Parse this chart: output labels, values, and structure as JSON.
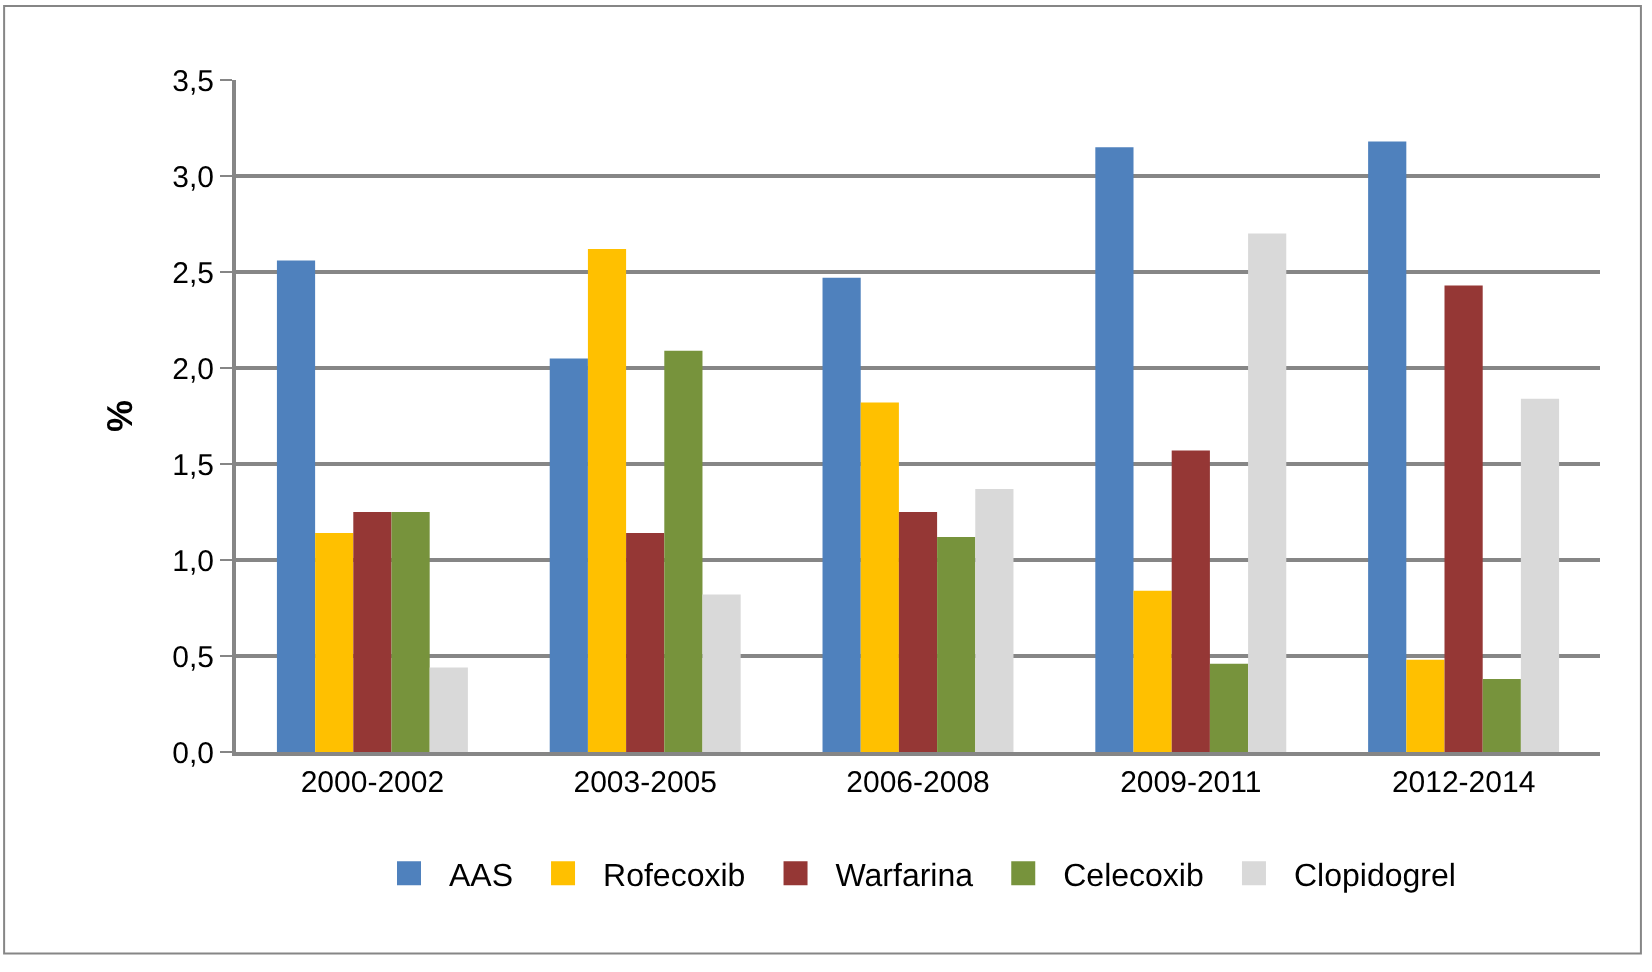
{
  "chart_data": {
    "type": "bar",
    "ylabel": "%",
    "categories": [
      "2000-2002",
      "2003-2005",
      "2006-2008",
      "2009-2011",
      "2012-2014"
    ],
    "series": [
      {
        "name": "AAS",
        "color": "#4f81bd",
        "values": [
          2.56,
          2.05,
          2.47,
          3.15,
          3.18
        ]
      },
      {
        "name": "Rofecoxib",
        "color": "#ffc000",
        "values": [
          1.14,
          2.62,
          1.82,
          0.84,
          0.48
        ]
      },
      {
        "name": "Warfarina",
        "color": "#953735",
        "values": [
          1.25,
          1.14,
          1.25,
          1.57,
          2.43
        ]
      },
      {
        "name": "Celecoxib",
        "color": "#77933c",
        "values": [
          1.25,
          2.09,
          1.12,
          0.46,
          0.38
        ]
      },
      {
        "name": "Clopidogrel",
        "color": "#d9d9d9",
        "values": [
          0.44,
          0.82,
          1.37,
          2.7,
          1.84
        ]
      }
    ],
    "ylim": [
      0,
      3.5
    ],
    "yticks": [
      {
        "value": 0,
        "label": "0,0"
      },
      {
        "value": 0.5,
        "label": "0,5"
      },
      {
        "value": 1,
        "label": "1,0"
      },
      {
        "value": 1.5,
        "label": "1,5"
      },
      {
        "value": 2,
        "label": "2,0"
      },
      {
        "value": 2.5,
        "label": "2,5"
      },
      {
        "value": 3,
        "label": "3,0"
      },
      {
        "value": 3.5,
        "label": "3,5"
      }
    ],
    "grid": "y",
    "legend": "bottom"
  }
}
